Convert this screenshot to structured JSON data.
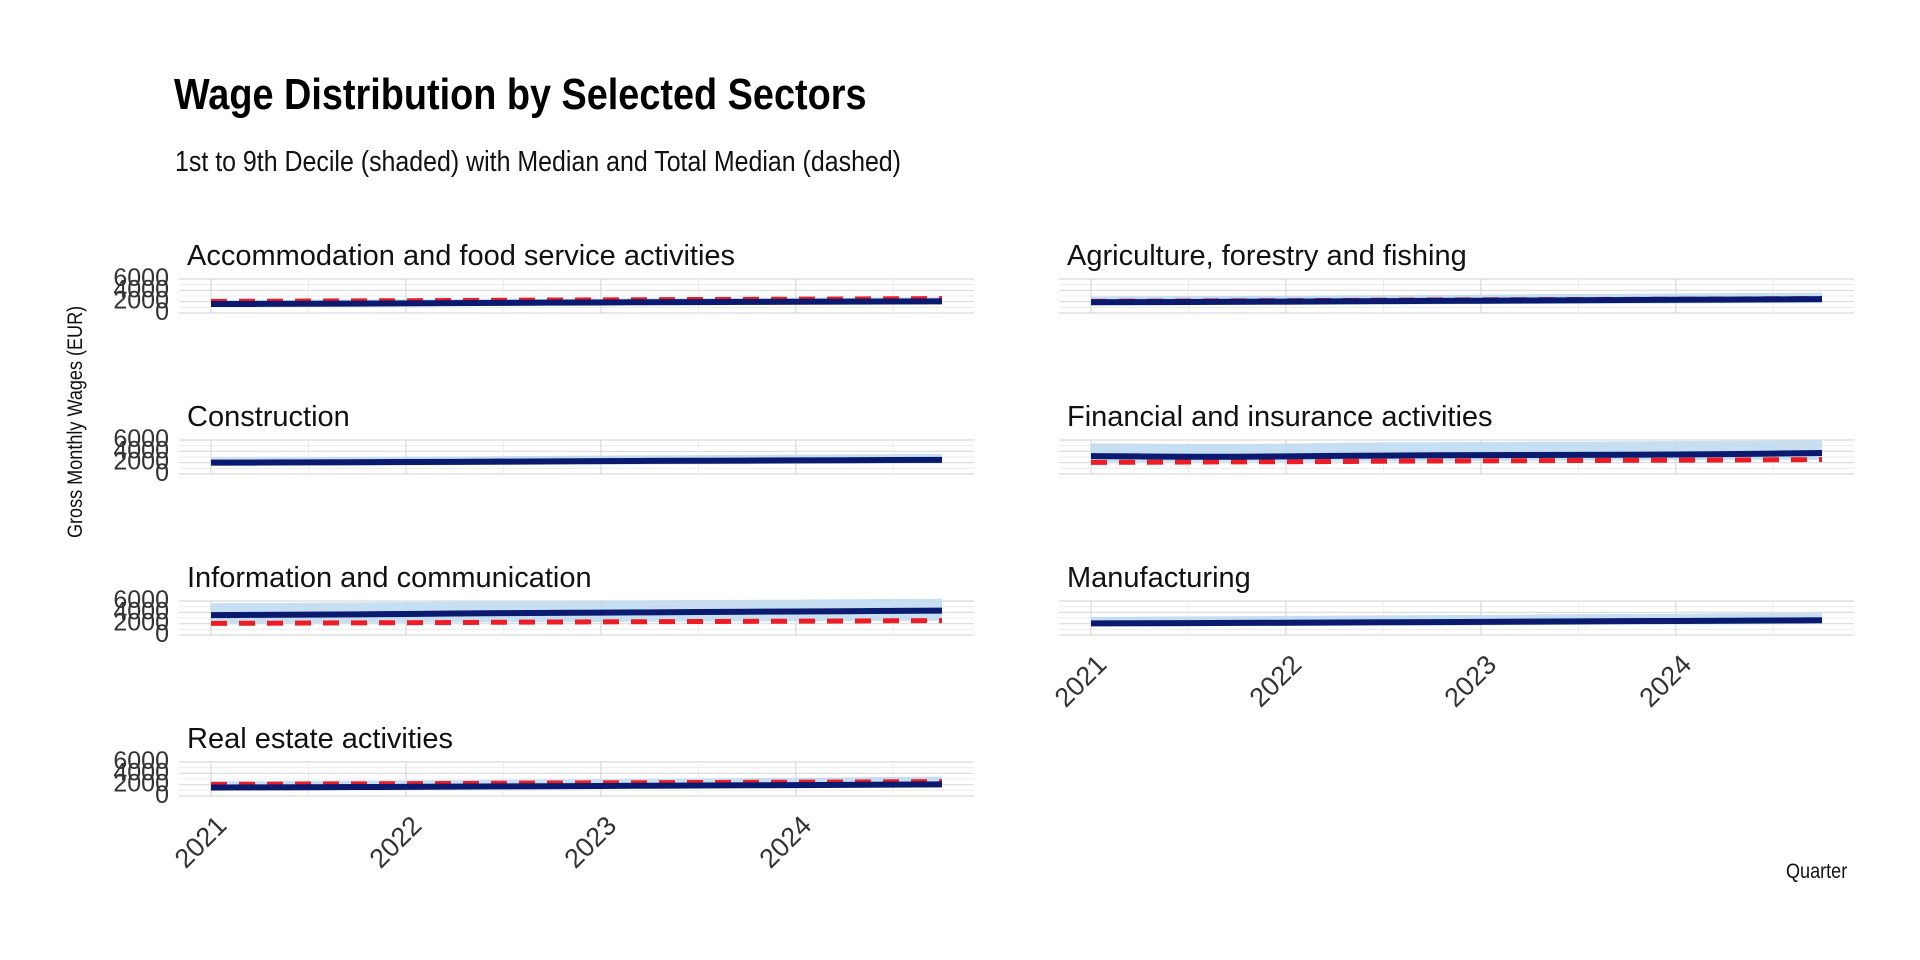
{
  "title": "Wage Distribution by Selected Sectors",
  "subtitle": "1st to 9th Decile (shaded) with Median and Total Median (dashed)",
  "colors": {
    "band": "#bcd9f0",
    "median": "#0a1a6e",
    "total_median": "#ee1c25",
    "grid": "#d9d9d9"
  },
  "chart_data": {
    "type": "area",
    "title": "Wage Distribution by Selected Sectors",
    "subtitle": "1st to 9th Decile (shaded) with Median and Total Median (dashed)",
    "xlabel": "Quarter",
    "ylabel": "Gross Monthly Wages (EUR)",
    "xlim": [
      2021,
      2024.75
    ],
    "ylim": [
      0,
      6000
    ],
    "x_ticks": [
      2021,
      2022,
      2023,
      2024
    ],
    "x_tick_labels": [
      "2021",
      "2022",
      "2023",
      "2024"
    ],
    "y_ticks": [
      0,
      2000,
      4000,
      6000
    ],
    "y_tick_labels": [
      "0",
      "2000",
      "4000",
      "6000"
    ],
    "grid": true,
    "x": [
      2021.0,
      2021.25,
      2021.5,
      2021.75,
      2022.0,
      2022.25,
      2022.5,
      2022.75,
      2023.0,
      2023.25,
      2023.5,
      2023.75,
      2024.0,
      2024.25,
      2024.5,
      2024.75
    ],
    "total_median": [
      2050,
      2080,
      2110,
      2140,
      2170,
      2210,
      2250,
      2290,
      2320,
      2350,
      2380,
      2410,
      2440,
      2470,
      2510,
      2540
    ],
    "panels": [
      {
        "label": "Accommodation and food service activities",
        "d1": [
          1250,
          1270,
          1290,
          1310,
          1340,
          1370,
          1400,
          1430,
          1460,
          1490,
          1510,
          1530,
          1550,
          1570,
          1590,
          1610
        ],
        "median": [
          1580,
          1600,
          1630,
          1660,
          1700,
          1740,
          1780,
          1820,
          1860,
          1900,
          1930,
          1960,
          1990,
          2010,
          2030,
          2050
        ],
        "d9": [
          2300,
          2320,
          2350,
          2380,
          2420,
          2460,
          2500,
          2540,
          2580,
          2620,
          2650,
          2680,
          2710,
          2740,
          2770,
          2800
        ]
      },
      {
        "label": "Agriculture, forestry and fishing",
        "d1": [
          1350,
          1370,
          1390,
          1410,
          1440,
          1470,
          1500,
          1530,
          1560,
          1590,
          1620,
          1650,
          1680,
          1710,
          1740,
          1770
        ],
        "median": [
          1900,
          1920,
          1950,
          1980,
          2010,
          2050,
          2090,
          2130,
          2170,
          2210,
          2250,
          2290,
          2330,
          2370,
          2410,
          2450
        ],
        "d9": [
          2900,
          2930,
          2970,
          3010,
          3050,
          3100,
          3150,
          3200,
          3250,
          3300,
          3350,
          3400,
          3450,
          3500,
          3550,
          3600
        ]
      },
      {
        "label": "Construction",
        "d1": [
          1450,
          1470,
          1490,
          1510,
          1540,
          1570,
          1600,
          1630,
          1660,
          1690,
          1720,
          1750,
          1780,
          1810,
          1840,
          1870
        ],
        "median": [
          2000,
          2020,
          2050,
          2080,
          2110,
          2150,
          2190,
          2230,
          2270,
          2310,
          2340,
          2370,
          2400,
          2430,
          2470,
          2500
        ],
        "d9": [
          2900,
          2930,
          2960,
          3000,
          3040,
          3090,
          3140,
          3190,
          3240,
          3290,
          3330,
          3370,
          3410,
          3450,
          3500,
          3550
        ]
      },
      {
        "label": "Financial and insurance activities",
        "d1": [
          2150,
          2150,
          2160,
          2170,
          2190,
          2220,
          2250,
          2280,
          2310,
          2340,
          2370,
          2400,
          2430,
          2460,
          2490,
          2520
        ],
        "median": [
          3150,
          3100,
          3050,
          3050,
          3100,
          3200,
          3250,
          3300,
          3330,
          3350,
          3370,
          3400,
          3450,
          3500,
          3600,
          3700
        ],
        "d9": [
          5400,
          5350,
          5300,
          5300,
          5350,
          5500,
          5600,
          5600,
          5650,
          5700,
          5700,
          5750,
          5800,
          5850,
          5900,
          5950
        ]
      },
      {
        "label": "Information and communication",
        "d1": [
          2100,
          2100,
          2120,
          2140,
          2170,
          2200,
          2230,
          2270,
          2300,
          2340,
          2370,
          2400,
          2430,
          2460,
          2490,
          2520
        ],
        "median": [
          3500,
          3550,
          3600,
          3650,
          3700,
          3800,
          3850,
          3900,
          3950,
          4000,
          4050,
          4100,
          4150,
          4200,
          4250,
          4300
        ],
        "d9": [
          5600,
          5650,
          5700,
          5750,
          5800,
          5900,
          5950,
          6000,
          6050,
          6100,
          6150,
          6200,
          6250,
          6300,
          6350,
          6400
        ]
      },
      {
        "label": "Manufacturing",
        "d1": [
          1500,
          1520,
          1540,
          1560,
          1590,
          1620,
          1650,
          1680,
          1710,
          1740,
          1770,
          1800,
          1830,
          1860,
          1890,
          1920
        ],
        "median": [
          2050,
          2070,
          2100,
          2130,
          2160,
          2200,
          2240,
          2280,
          2320,
          2360,
          2400,
          2440,
          2480,
          2520,
          2560,
          2600
        ],
        "d9": [
          3200,
          3230,
          3270,
          3310,
          3360,
          3410,
          3460,
          3510,
          3560,
          3610,
          3660,
          3710,
          3760,
          3810,
          3860,
          3910
        ]
      },
      {
        "label": "Real estate activities",
        "d1": [
          1150,
          1170,
          1190,
          1210,
          1240,
          1270,
          1300,
          1330,
          1360,
          1390,
          1420,
          1450,
          1480,
          1510,
          1540,
          1570
        ],
        "median": [
          1500,
          1520,
          1550,
          1580,
          1610,
          1650,
          1690,
          1730,
          1770,
          1810,
          1850,
          1890,
          1930,
          1970,
          2010,
          2050
        ],
        "d9": [
          2600,
          2630,
          2670,
          2710,
          2750,
          2800,
          2860,
          2920,
          2980,
          3040,
          3100,
          3160,
          3220,
          3280,
          3350,
          3420
        ]
      }
    ]
  }
}
